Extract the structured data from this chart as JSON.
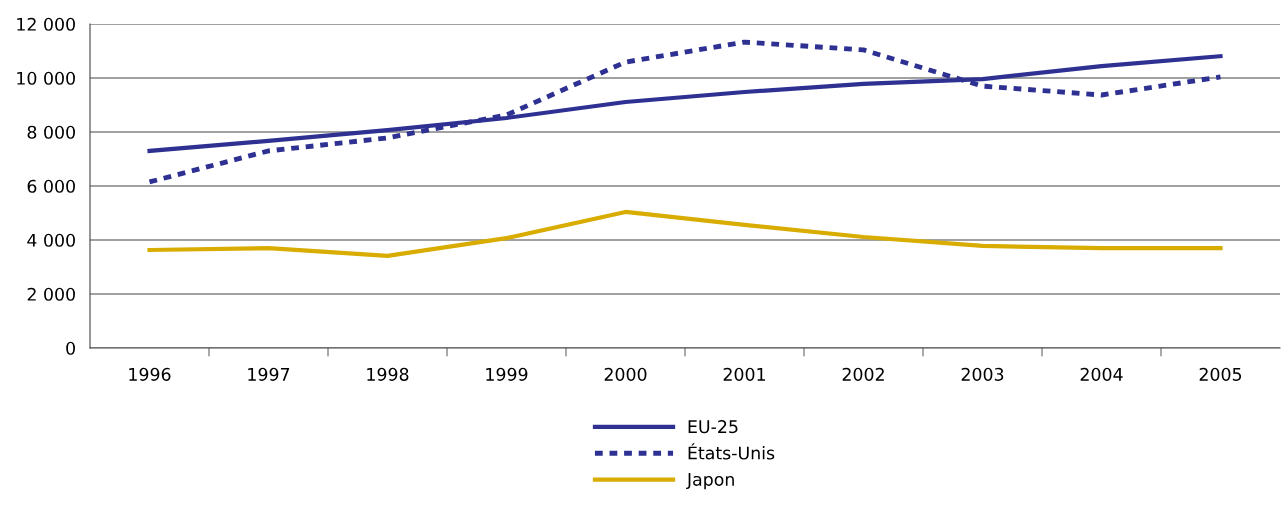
{
  "chart_data": {
    "type": "line",
    "categories": [
      "1996",
      "1997",
      "1998",
      "1999",
      "2000",
      "2001",
      "2002",
      "2003",
      "2004",
      "2005"
    ],
    "series": [
      {
        "name": "EU-25",
        "color": "#2e3192",
        "line_style": "solid",
        "values": [
          7300,
          7670,
          8070,
          8520,
          9110,
          9480,
          9780,
          9960,
          10440,
          10810
        ]
      },
      {
        "name": "États-Unis",
        "color": "#2e3192",
        "line_style": "dotted",
        "values": [
          6150,
          7300,
          7780,
          8630,
          10590,
          11330,
          11040,
          9700,
          9370,
          10040
        ]
      },
      {
        "name": "Japon",
        "color": "#d8ac00",
        "line_style": "solid",
        "values": [
          3630,
          3700,
          3410,
          4070,
          5040,
          4560,
          4110,
          3780,
          3700,
          3700
        ]
      }
    ],
    "ylim": [
      0,
      12000
    ],
    "yticks": [
      0,
      {
        "value": 2000,
        "label": "2 000"
      },
      {
        "value": 4000,
        "label": "4 000"
      },
      {
        "value": 6000,
        "label": "6 000"
      },
      {
        "value": 8000,
        "label": "8 000"
      },
      {
        "value": 10000,
        "label": "10 000"
      },
      {
        "value": 12000,
        "label": "12 000"
      }
    ],
    "grid": "y",
    "legend": "bottom",
    "marker": "none"
  }
}
